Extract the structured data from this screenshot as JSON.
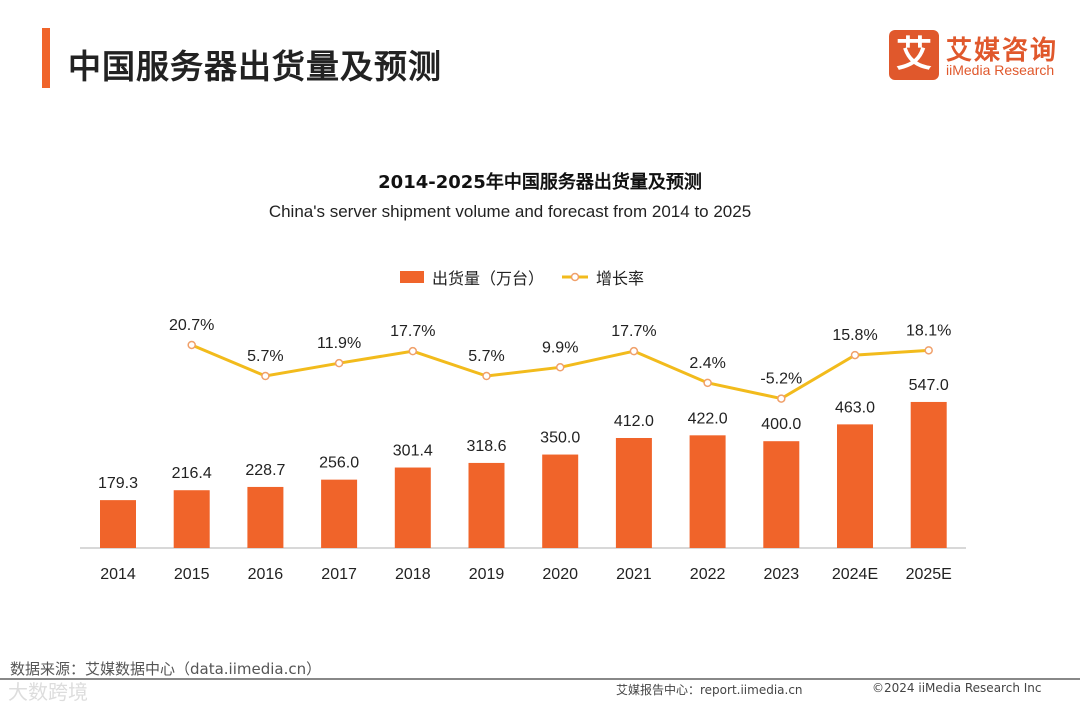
{
  "header": {
    "title": "中国服务器出货量及预测",
    "logo_mark": "艾",
    "logo_cn": "艾媒咨询",
    "logo_en": "iiMedia Research"
  },
  "footer": {
    "source": "数据来源：艾媒数据中心（data.iimedia.cn）",
    "report": "艾媒报告中心：report.iimedia.cn",
    "copyright": "©2024  iiMedia Research  Inc",
    "watermark": "大数跨境"
  },
  "colors": {
    "bar": "#f0642a",
    "line": "#f2bb1c",
    "accent": "#f0642a"
  },
  "chart_data": {
    "type": "bar",
    "title": "2014-2025年中国服务器出货量及预测",
    "subtitle": "China's server shipment volume and forecast from 2014 to 2025",
    "categories": [
      "2014",
      "2015",
      "2016",
      "2017",
      "2018",
      "2019",
      "2020",
      "2021",
      "2022",
      "2023",
      "2024E",
      "2025E"
    ],
    "series": [
      {
        "name": "出货量（万台）",
        "type": "bar",
        "values": [
          179.3,
          216.4,
          228.7,
          256.0,
          301.4,
          318.6,
          350.0,
          412.0,
          422.0,
          400.0,
          463.0,
          547.0
        ],
        "labels": [
          "179.3",
          "216.4",
          "228.7",
          "256.0",
          "301.4",
          "318.6",
          "350.0",
          "412.0",
          "422.0",
          "400.0",
          "463.0",
          "547.0"
        ]
      },
      {
        "name": "增长率",
        "type": "line",
        "values": [
          null,
          20.7,
          5.7,
          11.9,
          17.7,
          5.7,
          9.9,
          17.7,
          2.4,
          -5.2,
          15.8,
          18.1
        ],
        "labels": [
          "",
          "20.7%",
          "5.7%",
          "11.9%",
          "17.7%",
          "5.7%",
          "9.9%",
          "17.7%",
          "2.4%",
          "-5.2%",
          "15.8%",
          "18.1%"
        ]
      }
    ],
    "legend": "top-center",
    "grid": false
  }
}
